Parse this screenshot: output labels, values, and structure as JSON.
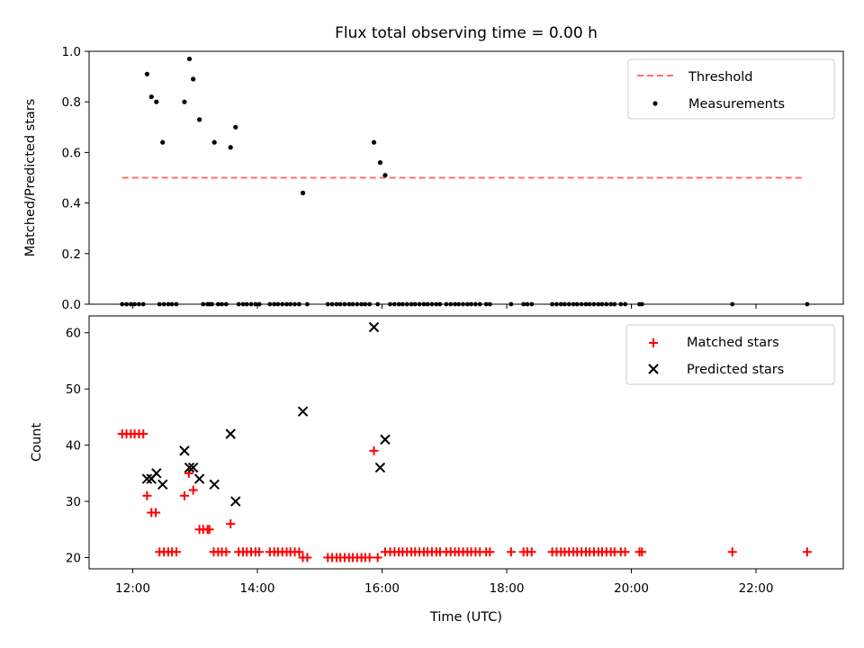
{
  "chart_data": {
    "title": "Flux total observing time = 0.00 h",
    "x_ticks": [
      "12:00",
      "14:00",
      "16:00",
      "18:00",
      "20:00",
      "22:00"
    ],
    "x_tick_hours": [
      12,
      14,
      16,
      18,
      20,
      22
    ],
    "xlabel": "Time (UTC)",
    "xlim_hours": [
      11.3,
      23.4
    ],
    "panels": [
      {
        "type": "scatter",
        "ylabel": "Matched/Predicted stars",
        "ylim": [
          0,
          1.0
        ],
        "y_ticks": [
          0.0,
          0.2,
          0.4,
          0.6,
          0.8,
          1.0
        ],
        "y_tick_labels": [
          "0.0",
          "0.2",
          "0.4",
          "0.6",
          "0.8",
          "1.0"
        ],
        "legend": {
          "position": "top-right",
          "entries": [
            "Threshold",
            "Measurements"
          ]
        },
        "threshold": {
          "name": "Threshold",
          "value": 0.5,
          "x_hours": [
            11.83,
            22.78
          ],
          "color": "#ff6f6f"
        },
        "measurements": {
          "name": "Measurements",
          "color": "#000000",
          "points": [
            [
              12.23,
              0.91
            ],
            [
              12.3,
              0.82
            ],
            [
              12.38,
              0.8
            ],
            [
              12.48,
              0.64
            ],
            [
              12.83,
              0.8
            ],
            [
              12.91,
              0.97
            ],
            [
              12.97,
              0.89
            ],
            [
              13.07,
              0.73
            ],
            [
              13.31,
              0.64
            ],
            [
              13.57,
              0.62
            ],
            [
              13.65,
              0.7
            ],
            [
              14.73,
              0.44
            ],
            [
              15.87,
              0.64
            ],
            [
              15.97,
              0.56
            ],
            [
              16.05,
              0.51
            ]
          ],
          "zero_points_hours": [
            11.83,
            11.9,
            11.97,
            12.03,
            12.1,
            12.17,
            12.43,
            12.5,
            12.57,
            12.63,
            12.7,
            13.13,
            13.2,
            13.23,
            13.27,
            13.37,
            13.43,
            13.5,
            13.7,
            13.77,
            13.83,
            13.9,
            13.97,
            14.03,
            14.2,
            14.27,
            14.33,
            14.4,
            14.47,
            14.53,
            14.6,
            14.67,
            14.8,
            15.13,
            15.2,
            15.27,
            15.33,
            15.4,
            15.47,
            15.53,
            15.6,
            15.67,
            15.73,
            15.8,
            15.93,
            16.13,
            16.2,
            16.27,
            16.33,
            16.4,
            16.47,
            16.53,
            16.6,
            16.67,
            16.73,
            16.8,
            16.87,
            16.93,
            17.03,
            17.1,
            17.17,
            17.23,
            17.3,
            17.37,
            17.43,
            17.5,
            17.57,
            17.67,
            17.73,
            18.07,
            18.27,
            18.33,
            18.4,
            18.73,
            18.8,
            18.87,
            18.93,
            19.0,
            19.07,
            19.13,
            19.2,
            19.27,
            19.33,
            19.4,
            19.47,
            19.53,
            19.6,
            19.67,
            19.73,
            19.83,
            19.9,
            20.13,
            20.17,
            21.62,
            22.82
          ]
        }
      },
      {
        "type": "scatter",
        "ylabel": "Count",
        "ylim": [
          18,
          63
        ],
        "y_ticks": [
          20,
          30,
          40,
          50,
          60
        ],
        "y_tick_labels": [
          "20",
          "30",
          "40",
          "50",
          "60"
        ],
        "legend": {
          "position": "top-right",
          "entries": [
            "Matched stars",
            "Predicted stars"
          ]
        },
        "series": [
          {
            "name": "Matched stars",
            "marker": "plus",
            "color": "#ff0000",
            "points": [
              [
                11.83,
                42
              ],
              [
                11.9,
                42
              ],
              [
                11.97,
                42
              ],
              [
                12.03,
                42
              ],
              [
                12.1,
                42
              ],
              [
                12.17,
                42
              ],
              [
                12.23,
                31
              ],
              [
                12.3,
                28
              ],
              [
                12.37,
                28
              ],
              [
                12.43,
                21
              ],
              [
                12.5,
                21
              ],
              [
                12.57,
                21
              ],
              [
                12.63,
                21
              ],
              [
                12.7,
                21
              ],
              [
                12.83,
                31
              ],
              [
                12.9,
                35
              ],
              [
                12.97,
                32
              ],
              [
                13.07,
                25
              ],
              [
                13.13,
                25
              ],
              [
                13.2,
                25
              ],
              [
                13.23,
                25
              ],
              [
                13.3,
                21
              ],
              [
                13.37,
                21
              ],
              [
                13.43,
                21
              ],
              [
                13.5,
                21
              ],
              [
                13.57,
                26
              ],
              [
                13.7,
                21
              ],
              [
                13.77,
                21
              ],
              [
                13.83,
                21
              ],
              [
                13.9,
                21
              ],
              [
                13.97,
                21
              ],
              [
                14.03,
                21
              ],
              [
                14.2,
                21
              ],
              [
                14.27,
                21
              ],
              [
                14.33,
                21
              ],
              [
                14.4,
                21
              ],
              [
                14.47,
                21
              ],
              [
                14.53,
                21
              ],
              [
                14.6,
                21
              ],
              [
                14.67,
                21
              ],
              [
                14.73,
                20
              ],
              [
                14.8,
                20
              ],
              [
                15.13,
                20
              ],
              [
                15.2,
                20
              ],
              [
                15.27,
                20
              ],
              [
                15.33,
                20
              ],
              [
                15.4,
                20
              ],
              [
                15.47,
                20
              ],
              [
                15.53,
                20
              ],
              [
                15.6,
                20
              ],
              [
                15.67,
                20
              ],
              [
                15.73,
                20
              ],
              [
                15.8,
                20
              ],
              [
                15.87,
                39
              ],
              [
                15.93,
                20
              ],
              [
                16.05,
                21
              ],
              [
                16.13,
                21
              ],
              [
                16.2,
                21
              ],
              [
                16.27,
                21
              ],
              [
                16.33,
                21
              ],
              [
                16.4,
                21
              ],
              [
                16.47,
                21
              ],
              [
                16.53,
                21
              ],
              [
                16.6,
                21
              ],
              [
                16.67,
                21
              ],
              [
                16.73,
                21
              ],
              [
                16.8,
                21
              ],
              [
                16.87,
                21
              ],
              [
                16.93,
                21
              ],
              [
                17.03,
                21
              ],
              [
                17.1,
                21
              ],
              [
                17.17,
                21
              ],
              [
                17.23,
                21
              ],
              [
                17.3,
                21
              ],
              [
                17.37,
                21
              ],
              [
                17.43,
                21
              ],
              [
                17.5,
                21
              ],
              [
                17.57,
                21
              ],
              [
                17.67,
                21
              ],
              [
                17.73,
                21
              ],
              [
                18.07,
                21
              ],
              [
                18.27,
                21
              ],
              [
                18.33,
                21
              ],
              [
                18.4,
                21
              ],
              [
                18.73,
                21
              ],
              [
                18.8,
                21
              ],
              [
                18.87,
                21
              ],
              [
                18.93,
                21
              ],
              [
                19.0,
                21
              ],
              [
                19.07,
                21
              ],
              [
                19.13,
                21
              ],
              [
                19.2,
                21
              ],
              [
                19.27,
                21
              ],
              [
                19.33,
                21
              ],
              [
                19.4,
                21
              ],
              [
                19.47,
                21
              ],
              [
                19.53,
                21
              ],
              [
                19.6,
                21
              ],
              [
                19.67,
                21
              ],
              [
                19.73,
                21
              ],
              [
                19.83,
                21
              ],
              [
                19.9,
                21
              ],
              [
                20.13,
                21
              ],
              [
                20.17,
                21
              ],
              [
                21.62,
                21
              ],
              [
                22.82,
                21
              ]
            ]
          },
          {
            "name": "Predicted stars",
            "marker": "x",
            "color": "#000000",
            "points": [
              [
                12.23,
                34
              ],
              [
                12.3,
                34
              ],
              [
                12.38,
                35
              ],
              [
                12.48,
                33
              ],
              [
                12.83,
                39
              ],
              [
                12.91,
                36
              ],
              [
                12.97,
                36
              ],
              [
                13.07,
                34
              ],
              [
                13.31,
                33
              ],
              [
                13.57,
                42
              ],
              [
                13.65,
                30
              ],
              [
                14.73,
                46
              ],
              [
                15.87,
                61
              ],
              [
                15.97,
                36
              ],
              [
                16.05,
                41
              ]
            ]
          }
        ]
      }
    ]
  }
}
